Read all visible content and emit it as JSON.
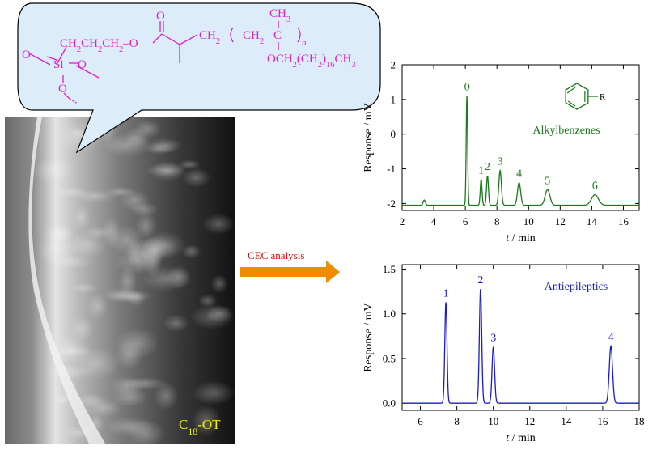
{
  "structure": {
    "tail_label": "O",
    "chain_label": "CH2CH2CH2–O",
    "si_label": "Si",
    "o_left": "O",
    "o_right": "O",
    "o_bottom": "O",
    "carbonyl_o": "O",
    "ch2_label": "CH2",
    "repeat_ch2": "CH2",
    "quat_c": "C",
    "methyl_top": "CH3",
    "repeat_n": "n",
    "side_chain": "OCH2(CH2)16CH3",
    "color": "#e020c8"
  },
  "sem_label": "C18-OT",
  "arrow_label": "CEC analysis",
  "colors": {
    "green": "#1a7a1a",
    "blue": "#1a1ad0",
    "arrow": "#f08c00",
    "bubble_fill": "#dcecf8",
    "label_yellow": "#f0f000"
  },
  "chart_data": [
    {
      "type": "line",
      "title": "",
      "legend_text": "Alkylbenzenes",
      "icon_label": "R",
      "xlabel_italic": "t",
      "xlabel_rest": " / min",
      "ylabel": "Response / mV",
      "xlim": [
        2,
        17
      ],
      "ylim": [
        -2.2,
        2
      ],
      "xticks": [
        2,
        4,
        6,
        8,
        10,
        12,
        14,
        16
      ],
      "yticks": [
        -2,
        -1,
        0,
        1,
        2
      ],
      "baseline": -2.05,
      "peaks": [
        {
          "label": "",
          "x": 3.4,
          "y": -1.9,
          "w": 0.07
        },
        {
          "label": "0",
          "x": 6.1,
          "y": 1.1,
          "w": 0.045
        },
        {
          "label": "1",
          "x": 7.0,
          "y": -1.3,
          "w": 0.055
        },
        {
          "label": "2",
          "x": 7.4,
          "y": -1.2,
          "w": 0.06
        },
        {
          "label": "3",
          "x": 8.2,
          "y": -1.05,
          "w": 0.08
        },
        {
          "label": "4",
          "x": 9.4,
          "y": -1.4,
          "w": 0.1
        },
        {
          "label": "5",
          "x": 11.2,
          "y": -1.6,
          "w": 0.15
        },
        {
          "label": "6",
          "x": 14.2,
          "y": -1.75,
          "w": 0.22
        }
      ]
    },
    {
      "type": "line",
      "title": "",
      "legend_text": "Antiepileptics",
      "xlabel_italic": "t",
      "xlabel_rest": " / min",
      "ylabel": "Response / mV",
      "xlim": [
        5,
        18
      ],
      "ylim": [
        -0.08,
        1.55
      ],
      "xticks": [
        6,
        8,
        10,
        12,
        14,
        16,
        18
      ],
      "yticks": [
        "0.0",
        "0.5",
        "1.0",
        "1.5"
      ],
      "baseline": 0.0,
      "peaks": [
        {
          "label": "1",
          "x": 7.4,
          "y": 1.13,
          "w": 0.06
        },
        {
          "label": "2",
          "x": 9.3,
          "y": 1.28,
          "w": 0.065
        },
        {
          "label": "3",
          "x": 10.0,
          "y": 0.63,
          "w": 0.07
        },
        {
          "label": "4",
          "x": 16.45,
          "y": 0.64,
          "w": 0.09
        }
      ]
    }
  ]
}
